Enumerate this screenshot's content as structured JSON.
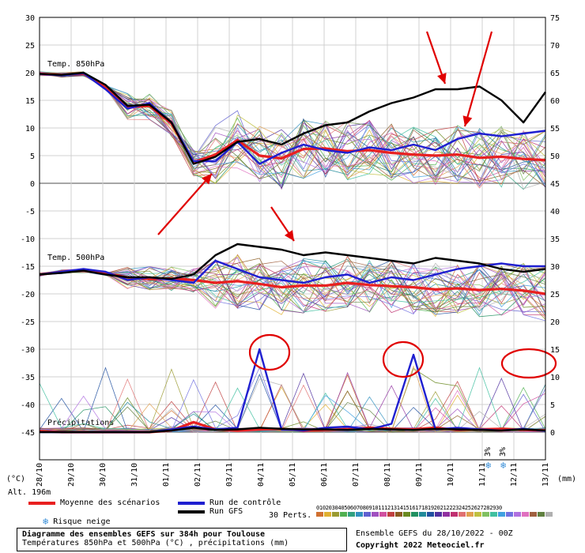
{
  "chart_data": {
    "type": "line",
    "title": "Diagramme des ensembles GEFS sur 384h pour Toulouse",
    "subtitle": "Températures 850hPa et 500hPa (°C) , précipitations (mm)",
    "x": [
      "29/10",
      "30/10",
      "31/10",
      "01/11",
      "02/11",
      "03/11",
      "04/11",
      "05/11",
      "06/11",
      "07/11",
      "08/11",
      "09/11",
      "10/11",
      "11/11",
      "12/11",
      "13/11"
    ],
    "x_first_label": "28/10",
    "left_axis": {
      "ticks": [
        30,
        25,
        20,
        15,
        10,
        5,
        0,
        -5,
        -10,
        -15,
        -20,
        -25,
        -30,
        -35,
        -40,
        -45
      ],
      "label": "(°C)",
      "ylim": [
        -45,
        30
      ]
    },
    "right_axis": {
      "ticks": [
        75,
        70,
        65,
        60,
        55,
        50,
        45,
        40,
        35,
        30,
        25,
        20,
        15,
        10,
        5,
        0
      ],
      "label": "(mm)"
    },
    "panels": {
      "t850": "Temp. 850hPa",
      "t500": "Temp. 500hPa",
      "precip": "Précipitations"
    },
    "series": [
      {
        "name": "Moyenne des scénarios",
        "color": "#e82020",
        "t850": [
          19.8,
          19.6,
          19.8,
          17.5,
          13.8,
          14.0,
          10.8,
          3.8,
          5.2,
          7.8,
          5.0,
          4.5,
          6.2,
          6.3,
          5.8,
          6.0,
          5.5,
          5.2,
          5.0,
          5.2,
          4.6,
          4.8,
          4.4,
          4.2
        ],
        "t500": [
          -16.5,
          -16.0,
          -15.8,
          -16.3,
          -17.0,
          -17.3,
          -17.2,
          -17.5,
          -18.0,
          -17.7,
          -18.2,
          -18.8,
          -18.5,
          -18.5,
          -18.0,
          -18.4,
          -18.6,
          -18.8,
          -19.2,
          -19.0,
          -19.3,
          -19.1,
          -19.4,
          -20.0
        ],
        "precip": [
          0.2,
          0,
          0,
          0,
          0,
          0,
          0.3,
          1.8,
          0.5,
          0.3,
          0.5,
          0.6,
          0.3,
          0.4,
          0.5,
          0.8,
          0.6,
          0.5,
          0.8,
          0.4,
          0.5,
          0.6,
          0.4,
          0.3
        ]
      },
      {
        "name": "Run de contrôle",
        "color": "#1f1fd0",
        "t850": [
          19.8,
          19.5,
          19.9,
          17.0,
          13.5,
          14.5,
          11.0,
          4.0,
          4.0,
          7.5,
          3.5,
          5.5,
          7.0,
          6.0,
          5.5,
          6.5,
          6.0,
          7.0,
          6.0,
          8.0,
          9.0,
          8.5,
          9.0,
          9.5
        ],
        "t500": [
          -16.5,
          -16.0,
          -15.5,
          -16.0,
          -17.5,
          -17.0,
          -17.5,
          -18.0,
          -14.0,
          -15.5,
          -17.0,
          -17.5,
          -18.0,
          -17.0,
          -16.5,
          -18.0,
          -17.0,
          -17.5,
          -16.5,
          -15.5,
          -15.0,
          -14.5,
          -15.0,
          -15.0
        ],
        "precip": [
          0,
          0,
          0,
          0,
          0,
          0,
          0.5,
          1.0,
          0.5,
          0.8,
          15.0,
          0.5,
          0.3,
          0.8,
          1.0,
          0.5,
          1.5,
          14.0,
          0.5,
          0.8,
          0.5,
          0.3,
          0.6,
          0.2
        ]
      },
      {
        "name": "Run GFS",
        "color": "#000000",
        "t850": [
          19.8,
          19.6,
          20.0,
          17.8,
          14.0,
          14.2,
          11.0,
          3.5,
          4.8,
          7.5,
          8.0,
          7.0,
          9.0,
          10.5,
          11.0,
          13.0,
          14.5,
          15.5,
          17.0,
          17.0,
          17.5,
          15.0,
          11.0,
          16.5
        ],
        "t500": [
          -16.5,
          -16.2,
          -15.8,
          -16.5,
          -17.0,
          -17.0,
          -17.3,
          -16.5,
          -13.0,
          -11.0,
          -11.5,
          -12.0,
          -13.0,
          -12.5,
          -13.0,
          -13.5,
          -14.0,
          -14.5,
          -13.5,
          -14.0,
          -14.5,
          -15.5,
          -16.0,
          -15.5
        ],
        "precip": [
          0,
          0,
          0,
          0,
          0,
          0,
          0.3,
          0.8,
          0.4,
          0.5,
          0.8,
          0.6,
          0.5,
          0.5,
          0.4,
          0.6,
          0.5,
          0.4,
          0.6,
          0.5,
          0.4,
          0.3,
          0.5,
          0.3
        ]
      }
    ],
    "legend": [
      {
        "label": "Moyenne des scénarios",
        "color": "#e82020"
      },
      {
        "label": "Run de contrôle",
        "color": "#1f1fd0"
      },
      {
        "label": "Run GFS",
        "color": "#000000"
      }
    ],
    "snow_risk_label": "Risque neige",
    "snow_risk_marks": [
      "3%",
      "3%"
    ],
    "perturbations_label": "30 Perts.",
    "perturbation_ids": [
      "01",
      "02",
      "03",
      "04",
      "05",
      "06",
      "07",
      "08",
      "09",
      "10",
      "11",
      "12",
      "13",
      "14",
      "15",
      "16",
      "17",
      "18",
      "19",
      "20",
      "21",
      "22",
      "23",
      "24",
      "25",
      "26",
      "27",
      "28",
      "29",
      "30"
    ],
    "perturbation_colors": [
      "#d07030",
      "#e0b030",
      "#9a9a30",
      "#50b050",
      "#30a080",
      "#3090c0",
      "#6060d0",
      "#a050c0",
      "#d050a0",
      "#c04040",
      "#8a5a20",
      "#6a8a20",
      "#209060",
      "#208a9a",
      "#2050a0",
      "#5030a0",
      "#9030a0",
      "#c03070",
      "#e07070",
      "#e0a050",
      "#c0c040",
      "#80c060",
      "#40c0a0",
      "#40a0e0",
      "#7070e0",
      "#b070e0",
      "#e070c0",
      "#a06040",
      "#608040",
      "#b0b0b0"
    ],
    "altitude": "Alt. 196m",
    "run_info": "Ensemble GEFS du 28/10/2022 - 00Z",
    "copyright": "Copyright 2022 Meteociel.fr"
  }
}
